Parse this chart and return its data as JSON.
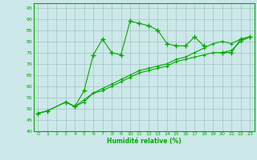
{
  "x": [
    0,
    1,
    2,
    3,
    4,
    5,
    6,
    7,
    8,
    9,
    10,
    11,
    12,
    13,
    14,
    15,
    16,
    17,
    18,
    19,
    20,
    21,
    22,
    23
  ],
  "y_main": [
    48,
    49,
    null,
    53,
    51,
    58,
    74,
    81,
    75,
    74,
    89,
    88,
    87,
    85,
    79,
    78,
    78,
    82,
    78,
    null,
    75,
    75,
    81,
    82
  ],
  "y_lower": [
    48,
    49,
    null,
    53,
    51,
    53,
    57,
    58,
    60,
    62,
    64,
    66,
    67,
    68,
    69,
    71,
    72,
    73,
    74,
    75,
    75,
    76,
    80,
    82
  ],
  "y_upper": [
    48,
    49,
    null,
    53,
    51,
    54,
    57,
    59,
    61,
    63,
    65,
    67,
    68,
    69,
    70,
    72,
    73,
    75,
    77,
    79,
    80,
    79,
    81,
    82
  ],
  "ylim": [
    40,
    97
  ],
  "yticks": [
    40,
    45,
    50,
    55,
    60,
    65,
    70,
    75,
    80,
    85,
    90,
    95
  ],
  "xlim": [
    -0.5,
    23.5
  ],
  "xlabel": "Humidité relative (%)",
  "line_color": "#00aa00",
  "bg_color": "#cce8e8",
  "grid_color": "#99bbbb"
}
